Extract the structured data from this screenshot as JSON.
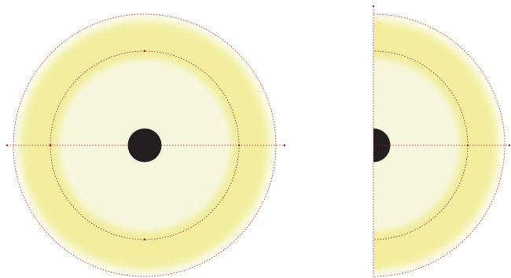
{
  "diagram": {
    "colors": {
      "background": "#ffffff",
      "outer_band": "#f2ee9e",
      "inner_disc": "#f6f7dc",
      "core": "#231f20",
      "guide_line": "#9b1b30"
    },
    "figures": [
      {
        "name": "full-view",
        "shape": "circle"
      },
      {
        "name": "half-view",
        "shape": "half-circle"
      }
    ]
  }
}
